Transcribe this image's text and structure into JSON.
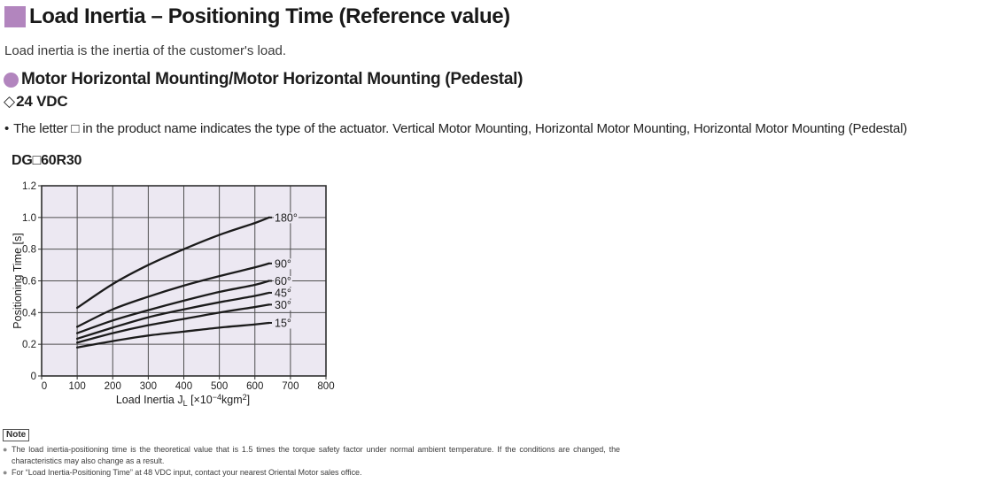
{
  "header": {
    "title": "Load Inertia – Positioning Time (Reference value)",
    "subtitle": "Load inertia is the inertia of the customer's load."
  },
  "section": {
    "heading": "Motor Horizontal Mounting/Motor Horizontal Mounting (Pedestal)",
    "voltage": "24 VDC",
    "bullet_char": "•",
    "actuator_note": "The letter □ in the product name indicates the type of the actuator. Vertical Motor Mounting, Horizontal Motor Mounting, Horizontal Motor Mounting (Pedestal)"
  },
  "colors": {
    "accent_purple": "#b285be",
    "plot_background": "#ece8f2",
    "grid_line": "#4f4f4f",
    "plot_border": "#2f2f2f",
    "curve": "#1b1b1b",
    "text": "#1c1c1c"
  },
  "chart_data": {
    "type": "line",
    "title": "DG□60R30",
    "ylabel": "Positioning Time [s]",
    "xlabel_plain": "Load Inertia JL [×10−4kgm2]",
    "xlabel_parts": {
      "main1": "Load Inertia J",
      "sub": "L",
      "main2": " [×10",
      "sup1": "−4",
      "main3": "kgm",
      "sup2": "2",
      "main4": "]"
    },
    "xlim": [
      0,
      800
    ],
    "ylim": [
      0,
      1.2
    ],
    "xticks": [
      0,
      100,
      200,
      300,
      400,
      500,
      600,
      700,
      800
    ],
    "yticks": [
      0,
      0.2,
      0.4,
      0.6,
      0.8,
      1.0,
      1.2
    ],
    "grid": true,
    "legend_position": "labels at right end of each curve",
    "series": [
      {
        "name": "180°",
        "x": [
          100,
          200,
          300,
          400,
          500,
          600,
          640
        ],
        "y": [
          0.43,
          0.58,
          0.7,
          0.8,
          0.89,
          0.965,
          1.0
        ]
      },
      {
        "name": "90°",
        "x": [
          100,
          200,
          300,
          400,
          500,
          600,
          640
        ],
        "y": [
          0.31,
          0.42,
          0.5,
          0.57,
          0.63,
          0.685,
          0.71
        ]
      },
      {
        "name": "60°",
        "x": [
          100,
          200,
          300,
          400,
          500,
          600,
          640
        ],
        "y": [
          0.27,
          0.35,
          0.415,
          0.475,
          0.53,
          0.575,
          0.6
        ]
      },
      {
        "name": "45°",
        "x": [
          100,
          200,
          300,
          400,
          500,
          600,
          640
        ],
        "y": [
          0.235,
          0.305,
          0.37,
          0.42,
          0.465,
          0.505,
          0.525
        ]
      },
      {
        "name": "30°",
        "x": [
          100,
          200,
          300,
          400,
          500,
          600,
          640
        ],
        "y": [
          0.21,
          0.27,
          0.32,
          0.36,
          0.4,
          0.435,
          0.45
        ]
      },
      {
        "name": "15°",
        "x": [
          100,
          200,
          300,
          400,
          500,
          600,
          640
        ],
        "y": [
          0.18,
          0.22,
          0.255,
          0.28,
          0.305,
          0.325,
          0.335
        ]
      }
    ]
  },
  "note": {
    "label": "Note",
    "items": [
      "The load inertia-positioning time is the theoretical value that is 1.5 times the torque safety factor under normal ambient temperature. If the conditions are changed, the characteristics may also change as a result.",
      "For “Load Inertia-Positioning Time” at 48 VDC input, contact your nearest Oriental Motor sales office."
    ]
  }
}
